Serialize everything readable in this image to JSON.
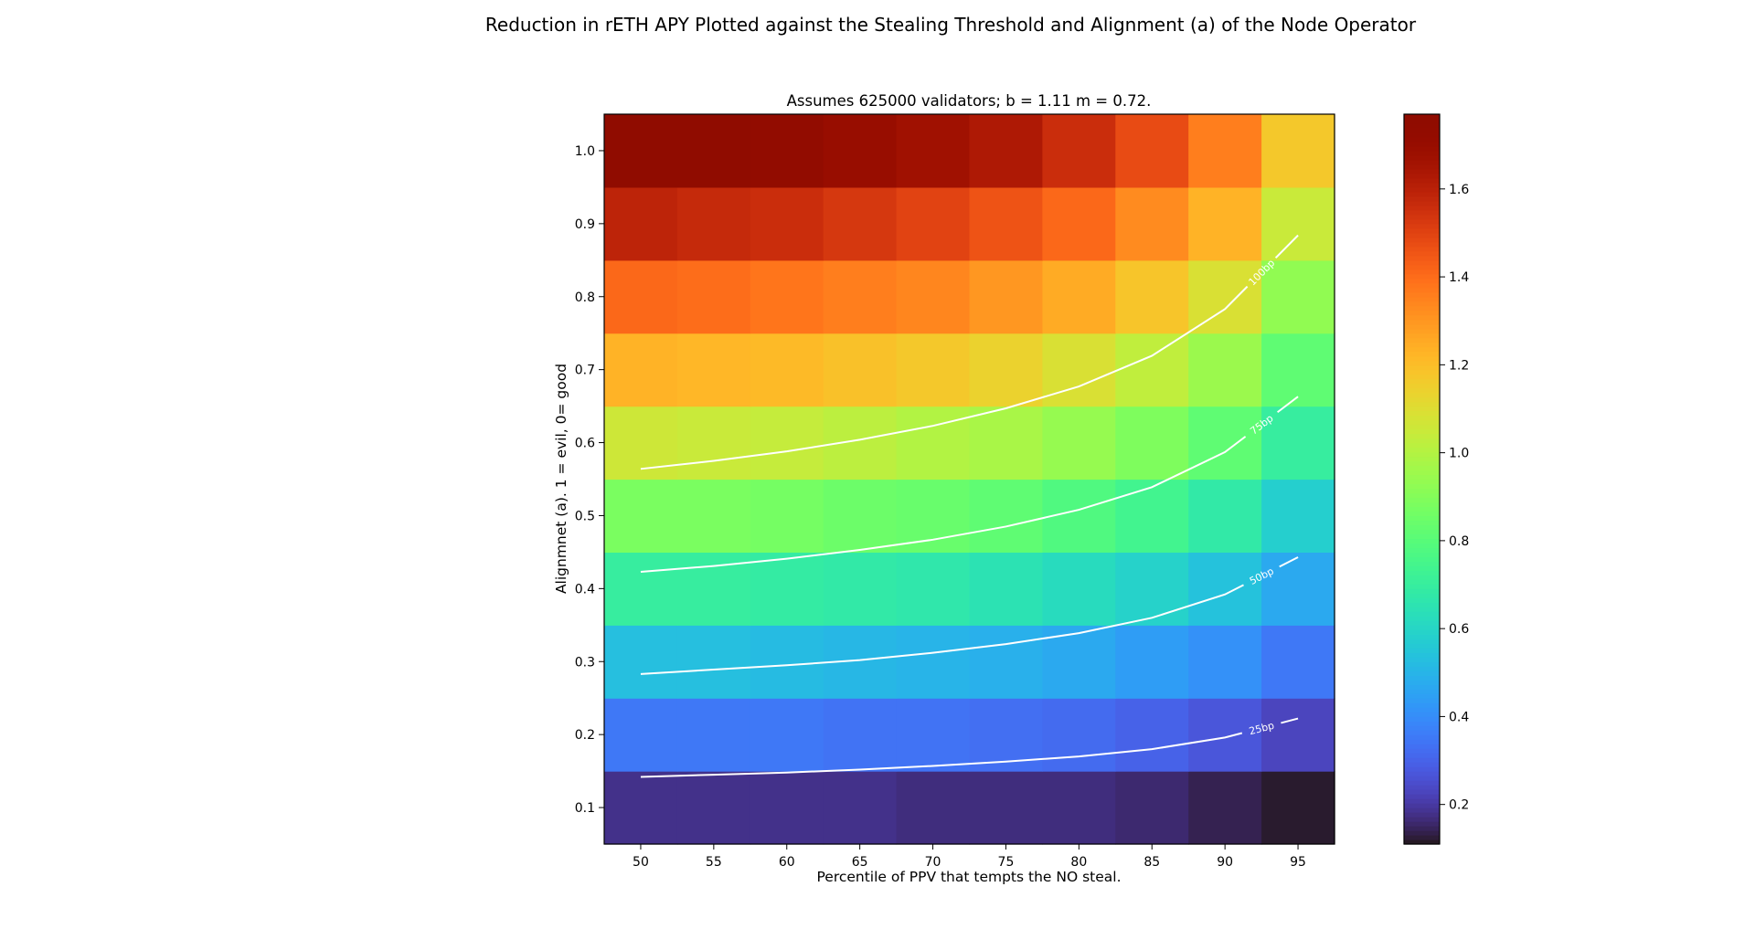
{
  "figure_title": "Reduction in rETH APY Plotted against the Stealing Threshold and Alignment (a) of the Node Operator",
  "chart_data": [
    {
      "type": "heatmap",
      "title": "Assumes 625000 validators; b = 1.11 m = 0.72.",
      "xlabel": "Percentile of PPV that tempts the NO steal.",
      "ylabel": "Alignmnet (a). 1 = evil, 0= good",
      "x": [
        50,
        55,
        60,
        65,
        70,
        75,
        80,
        85,
        90,
        95
      ],
      "y": [
        0.1,
        0.2,
        0.3,
        0.4,
        0.5,
        0.6,
        0.7,
        0.8,
        0.9,
        1.0
      ],
      "x_ticks": [
        "50",
        "55",
        "60",
        "65",
        "70",
        "75",
        "80",
        "85",
        "90",
        "95"
      ],
      "y_ticks": [
        "0.1",
        "0.2",
        "0.3",
        "0.4",
        "0.5",
        "0.6",
        "0.7",
        "0.8",
        "0.9",
        "1.0"
      ],
      "xlim": [
        47.5,
        97.5
      ],
      "ylim": [
        0.05,
        1.05
      ],
      "colormap": "turbo",
      "z": [
        [
          0.18,
          0.18,
          0.18,
          0.18,
          0.17,
          0.17,
          0.17,
          0.16,
          0.14,
          0.12
        ],
        [
          0.35,
          0.35,
          0.35,
          0.34,
          0.34,
          0.33,
          0.32,
          0.3,
          0.27,
          0.23
        ],
        [
          0.53,
          0.53,
          0.52,
          0.51,
          0.5,
          0.49,
          0.47,
          0.44,
          0.41,
          0.35
        ],
        [
          0.7,
          0.7,
          0.69,
          0.68,
          0.67,
          0.65,
          0.62,
          0.59,
          0.54,
          0.47
        ],
        [
          0.88,
          0.88,
          0.87,
          0.85,
          0.84,
          0.82,
          0.78,
          0.74,
          0.68,
          0.58
        ],
        [
          1.06,
          1.05,
          1.04,
          1.02,
          1.0,
          0.98,
          0.94,
          0.89,
          0.82,
          0.7
        ],
        [
          1.23,
          1.22,
          1.21,
          1.19,
          1.17,
          1.14,
          1.09,
          1.03,
          0.95,
          0.82
        ],
        [
          1.41,
          1.4,
          1.38,
          1.36,
          1.34,
          1.3,
          1.25,
          1.18,
          1.09,
          0.93
        ],
        [
          1.59,
          1.57,
          1.56,
          1.53,
          1.5,
          1.46,
          1.41,
          1.33,
          1.23,
          1.05
        ],
        [
          1.76,
          1.75,
          1.73,
          1.7,
          1.67,
          1.63,
          1.56,
          1.48,
          1.36,
          1.17
        ]
      ],
      "colorbar": {
        "min": 0.11,
        "max": 1.77,
        "ticks": [
          0.2,
          0.4,
          0.6,
          0.8,
          1.0,
          1.2,
          1.4,
          1.6
        ],
        "tick_labels": [
          "0.2",
          "0.4",
          "0.6",
          "0.8",
          "1.0",
          "1.2",
          "1.4",
          "1.6"
        ]
      },
      "contours": [
        {
          "label": "25bp",
          "x": [
            50,
            55,
            60,
            65,
            70,
            75,
            80,
            85,
            90,
            95
          ],
          "y": [
            0.142,
            0.145,
            0.148,
            0.152,
            0.157,
            0.163,
            0.17,
            0.18,
            0.196,
            0.222
          ]
        },
        {
          "label": "50bp",
          "x": [
            50,
            55,
            60,
            65,
            70,
            75,
            80,
            85,
            90,
            95
          ],
          "y": [
            0.283,
            0.289,
            0.295,
            0.302,
            0.312,
            0.324,
            0.339,
            0.36,
            0.392,
            0.443
          ]
        },
        {
          "label": "75bp",
          "x": [
            50,
            55,
            60,
            65,
            70,
            75,
            80,
            85,
            90,
            95
          ],
          "y": [
            0.423,
            0.431,
            0.441,
            0.453,
            0.467,
            0.485,
            0.508,
            0.539,
            0.587,
            0.663
          ]
        },
        {
          "label": "100bp",
          "x": [
            50,
            55,
            60,
            65,
            70,
            75,
            80,
            85,
            90,
            95
          ],
          "y": [
            0.564,
            0.575,
            0.588,
            0.604,
            0.623,
            0.647,
            0.677,
            0.719,
            0.783,
            0.884
          ]
        }
      ]
    }
  ]
}
